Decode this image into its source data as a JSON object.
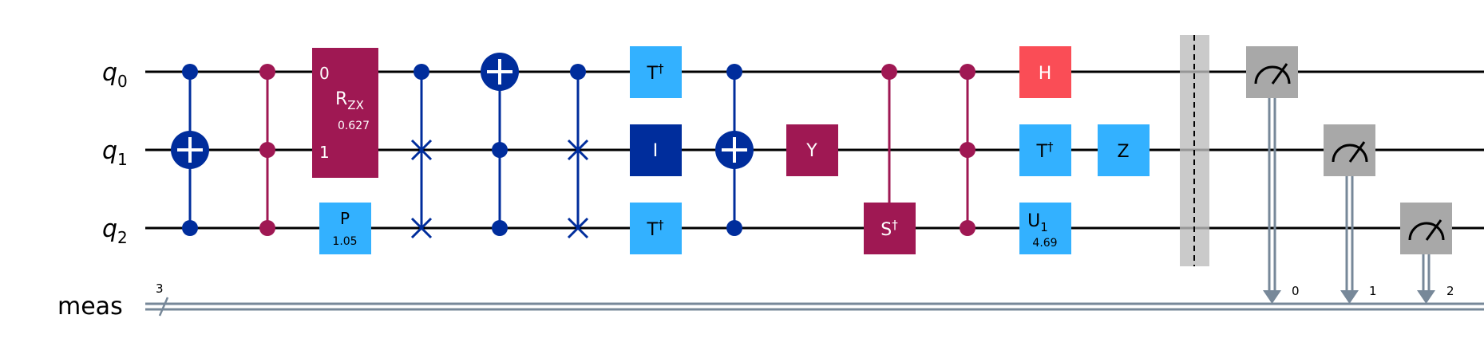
{
  "wires": {
    "qubits": [
      {
        "name": "q",
        "index": "0"
      },
      {
        "name": "q",
        "index": "1"
      },
      {
        "name": "q",
        "index": "2"
      }
    ],
    "classical": {
      "name": "meas",
      "size": "3"
    }
  },
  "gates": {
    "rzx": {
      "label": "R",
      "sub": "ZX",
      "param": "0.627",
      "port0": "0",
      "port1": "1"
    },
    "p": {
      "label": "P",
      "param": "1.05"
    },
    "tdg_q0": {
      "label": "T",
      "sup": "†"
    },
    "i": {
      "label": "I"
    },
    "tdg_q2": {
      "label": "T",
      "sup": "†"
    },
    "y": {
      "label": "Y"
    },
    "sdg": {
      "label": "S",
      "sup": "†"
    },
    "h": {
      "label": "H"
    },
    "tdg_q1": {
      "label": "T",
      "sup": "†"
    },
    "z": {
      "label": "Z"
    },
    "u1": {
      "label": "U",
      "sub": "1",
      "param": "4.69"
    }
  },
  "measure_bits": [
    "0",
    "1",
    "2"
  ],
  "colors": {
    "dark_blue": "#002D9C",
    "light_blue": "#33B1FF",
    "magenta": "#9F1853",
    "red": "#FA4D56",
    "measure_gray": "#A8A8A8",
    "classical_wire": "#778899",
    "barrier": "#BDBDBD"
  }
}
